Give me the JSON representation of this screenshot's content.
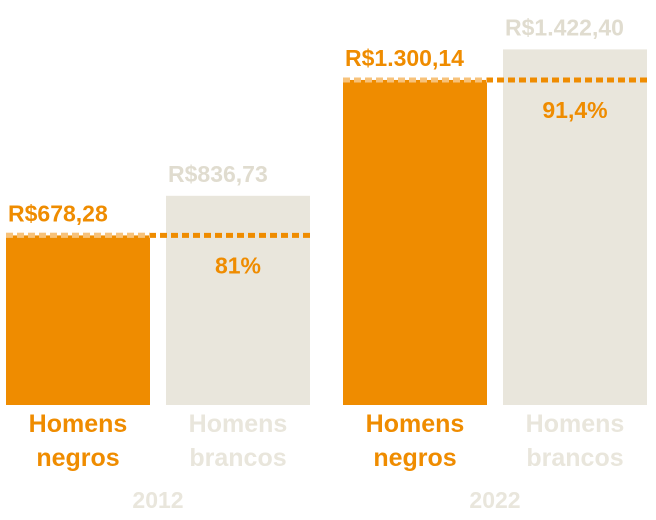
{
  "chart_data": {
    "type": "bar",
    "categories": [
      "2012",
      "2022"
    ],
    "series": [
      {
        "name": "Homens negros",
        "color": "#ef8c00",
        "values": [
          678.28,
          1300.14
        ],
        "value_labels": [
          "R$678,28",
          "R$1.300,14"
        ]
      },
      {
        "name": "Homens brancos",
        "color": "#e9e6dc",
        "values": [
          836.73,
          1422.4
        ],
        "value_labels": [
          "R$836,73",
          "R$1.422,40"
        ]
      }
    ],
    "annotations": [
      "81%",
      "91,4%"
    ]
  }
}
